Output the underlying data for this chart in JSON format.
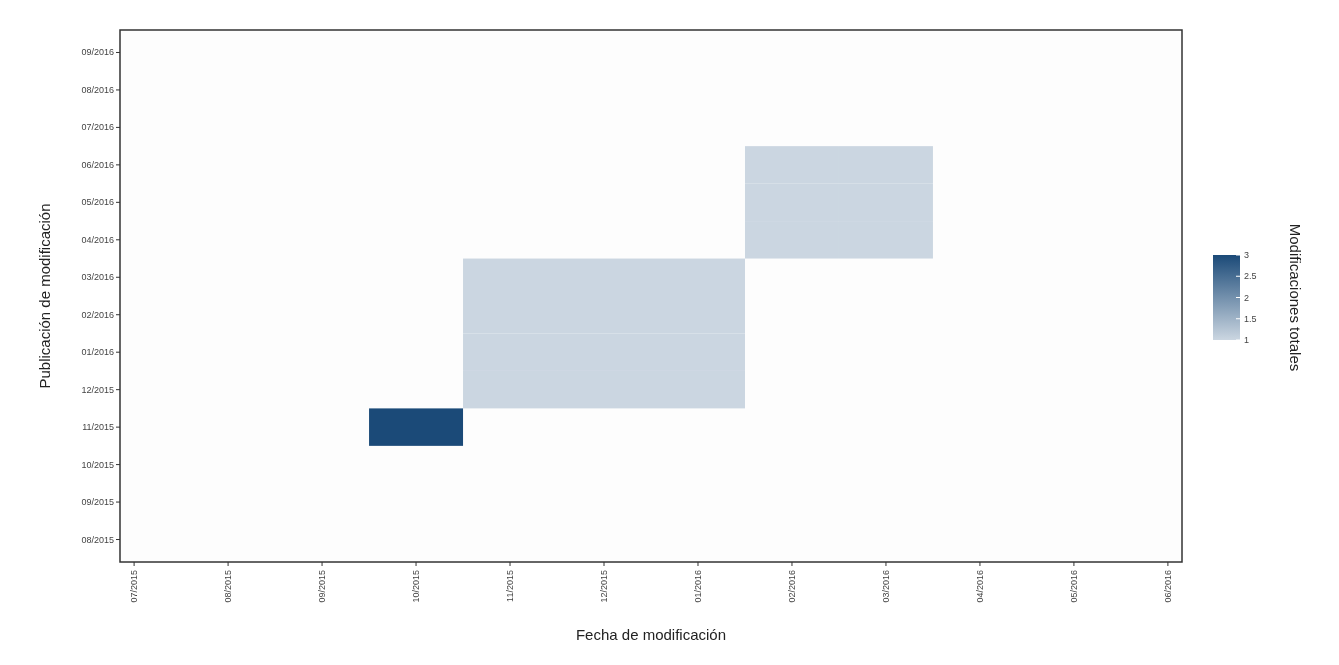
{
  "chart_data": {
    "type": "heatmap",
    "xlabel": "Fecha de modificación",
    "ylabel": "Publicación de modificación",
    "clabel": "Modificaciones totales",
    "categories": [
      "07/2015",
      "08/2015",
      "09/2015",
      "10/2015",
      "11/2015",
      "12/2015",
      "01/2016",
      "02/2016",
      "03/2016",
      "04/2016",
      "05/2016",
      "06/2016"
    ],
    "y_categories": [
      "09/2016",
      "08/2016",
      "07/2016",
      "06/2016",
      "05/2016",
      "04/2016",
      "03/2016",
      "02/2016",
      "01/2016",
      "12/2015",
      "11/2015",
      "10/2015",
      "09/2015",
      "08/2015"
    ],
    "cells": [
      [
        null,
        null,
        null,
        null,
        null,
        null,
        null,
        null,
        null,
        null,
        null,
        null
      ],
      [
        null,
        null,
        null,
        null,
        null,
        null,
        null,
        null,
        null,
        null,
        null,
        null
      ],
      [
        null,
        null,
        null,
        null,
        null,
        null,
        null,
        null,
        null,
        null,
        null,
        null
      ],
      [
        null,
        null,
        null,
        null,
        null,
        null,
        null,
        1,
        1,
        null,
        null,
        null
      ],
      [
        null,
        null,
        null,
        null,
        null,
        null,
        null,
        1,
        1,
        null,
        null,
        null
      ],
      [
        null,
        null,
        null,
        null,
        null,
        null,
        null,
        1,
        1,
        null,
        null,
        null
      ],
      [
        null,
        null,
        null,
        null,
        1,
        1,
        1,
        null,
        null,
        null,
        null,
        null
      ],
      [
        null,
        null,
        null,
        null,
        1,
        1,
        1,
        null,
        null,
        null,
        null,
        null
      ],
      [
        null,
        null,
        null,
        null,
        1,
        1,
        1,
        null,
        null,
        null,
        null,
        null
      ],
      [
        null,
        null,
        null,
        null,
        1,
        1,
        1,
        null,
        null,
        null,
        null,
        null
      ],
      [
        null,
        null,
        null,
        3,
        null,
        null,
        null,
        null,
        null,
        null,
        null,
        null
      ],
      [
        null,
        null,
        null,
        null,
        null,
        null,
        null,
        null,
        null,
        null,
        null,
        null
      ],
      [
        null,
        null,
        null,
        null,
        null,
        null,
        null,
        null,
        null,
        null,
        null,
        null
      ],
      [
        null,
        null,
        null,
        null,
        null,
        null,
        null,
        null,
        null,
        null,
        null,
        null
      ]
    ],
    "clim": [
      1,
      3
    ],
    "cticks": [
      1,
      1.5,
      2,
      2.5,
      3
    ]
  }
}
